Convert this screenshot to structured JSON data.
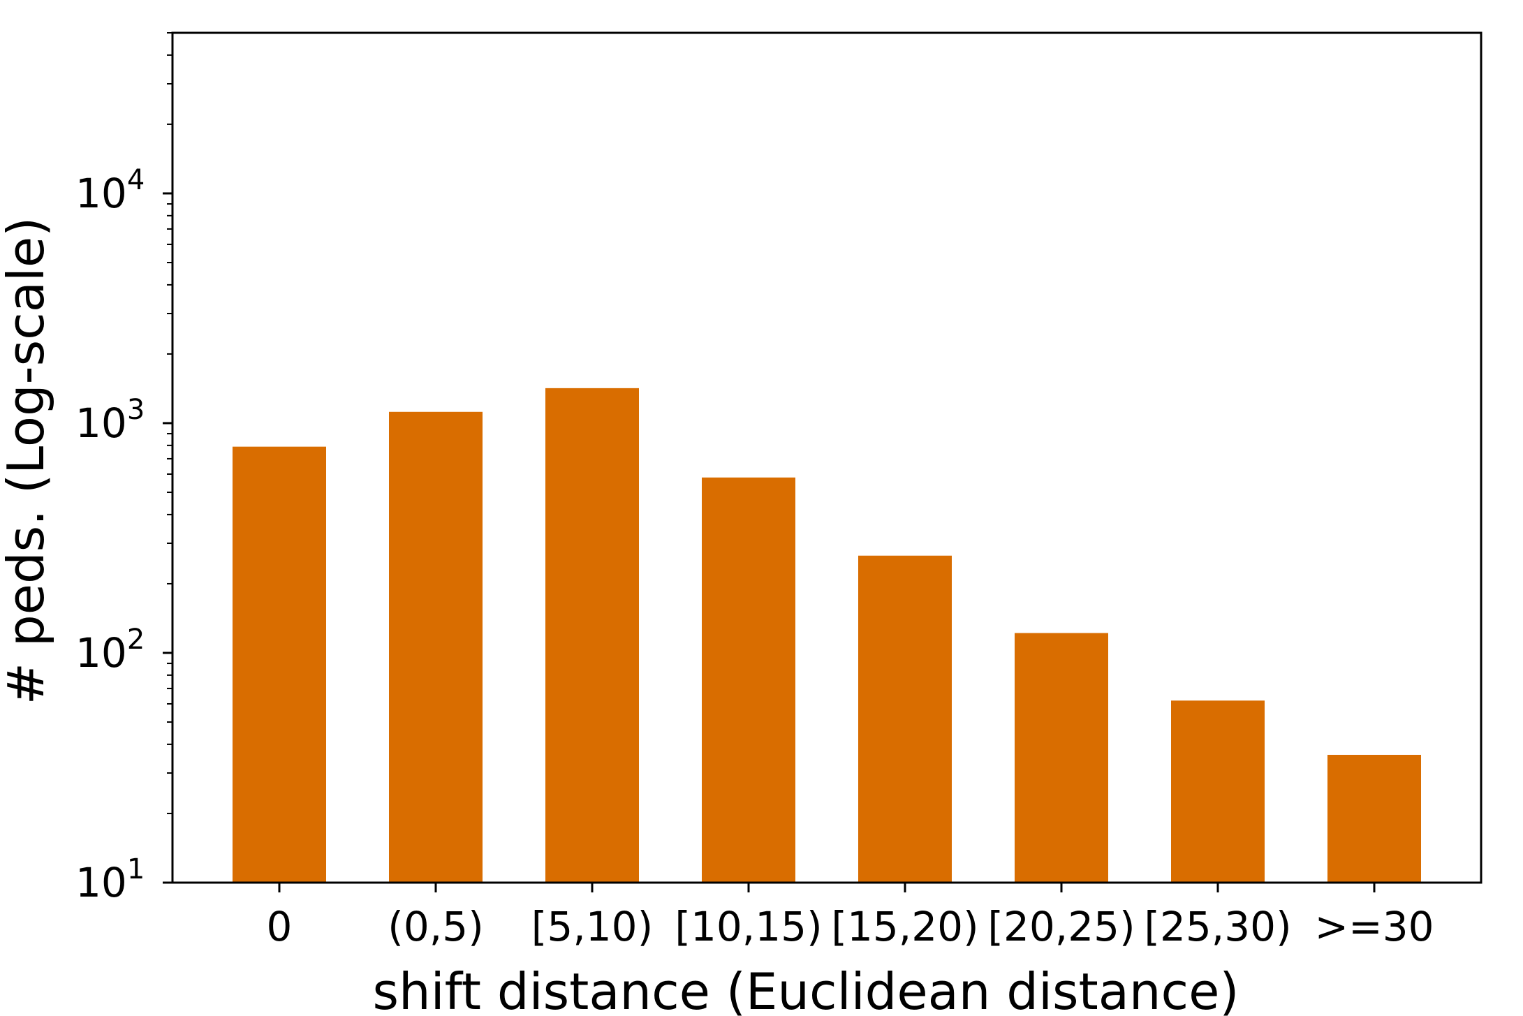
{
  "chart_data": {
    "type": "bar",
    "categories": [
      "0",
      "(0,5)",
      "[5,10)",
      "[10,15)",
      "[15,20)",
      "[20,25)",
      "[25,30)",
      ">=30"
    ],
    "values": [
      790,
      1120,
      1420,
      580,
      265,
      122,
      62,
      36
    ],
    "xlabel": "shift distance (Euclidean distance)",
    "ylabel": "# peds. (Log-scale)",
    "yscale": "log",
    "ylim": [
      10,
      50000
    ],
    "yticks": [
      {
        "base": "10",
        "exp": "1",
        "value": 10
      },
      {
        "base": "10",
        "exp": "2",
        "value": 100
      },
      {
        "base": "10",
        "exp": "3",
        "value": 1000
      },
      {
        "base": "10",
        "exp": "4",
        "value": 10000
      }
    ],
    "bar_color": "#d96d00",
    "grid": false,
    "legend": "none"
  }
}
